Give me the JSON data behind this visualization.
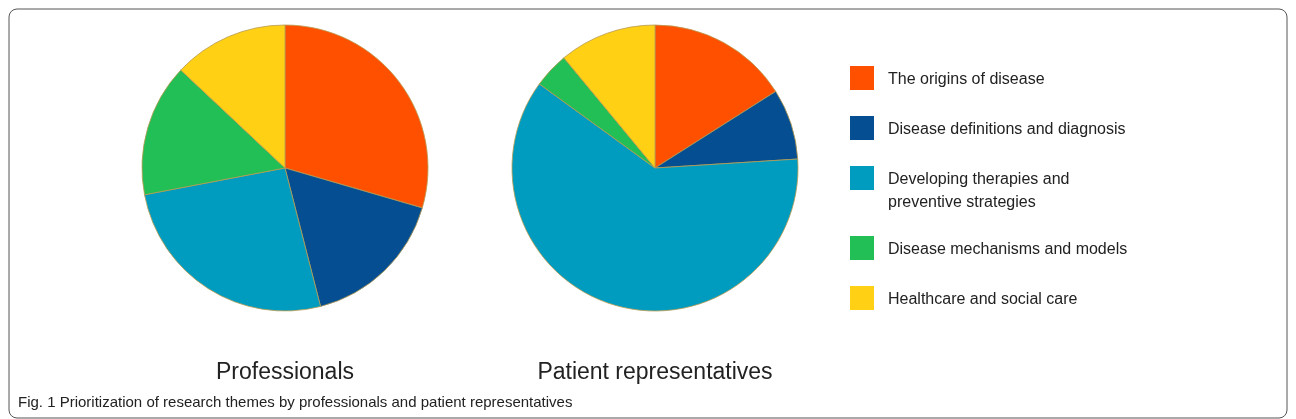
{
  "chart_data": [
    {
      "type": "pie",
      "title": "Professionals",
      "categories": [
        "The origins of disease",
        "Disease definitions and diagnosis",
        "Developing therapies and preventive strategies",
        "Disease mechanisms and models",
        "Healthcare and social care"
      ],
      "values": [
        29.5,
        16.5,
        26,
        15,
        13
      ],
      "colors": [
        "#ff5000",
        "#044e91",
        "#009cc0",
        "#21bf55",
        "#ffd014"
      ],
      "legend": "right",
      "annotations": [
        "Fig. 1  Prioritization of research themes by professionals and patient representatives"
      ]
    },
    {
      "type": "pie",
      "title": "Patient representatives",
      "categories": [
        null,
        null,
        null,
        null,
        null
      ],
      "values": [
        16,
        8,
        61,
        4,
        11
      ],
      "colors": [
        "#ff5000",
        "#044e91",
        "#009cc0",
        "#21bf55",
        "#ffd014"
      ]
    }
  ]
}
